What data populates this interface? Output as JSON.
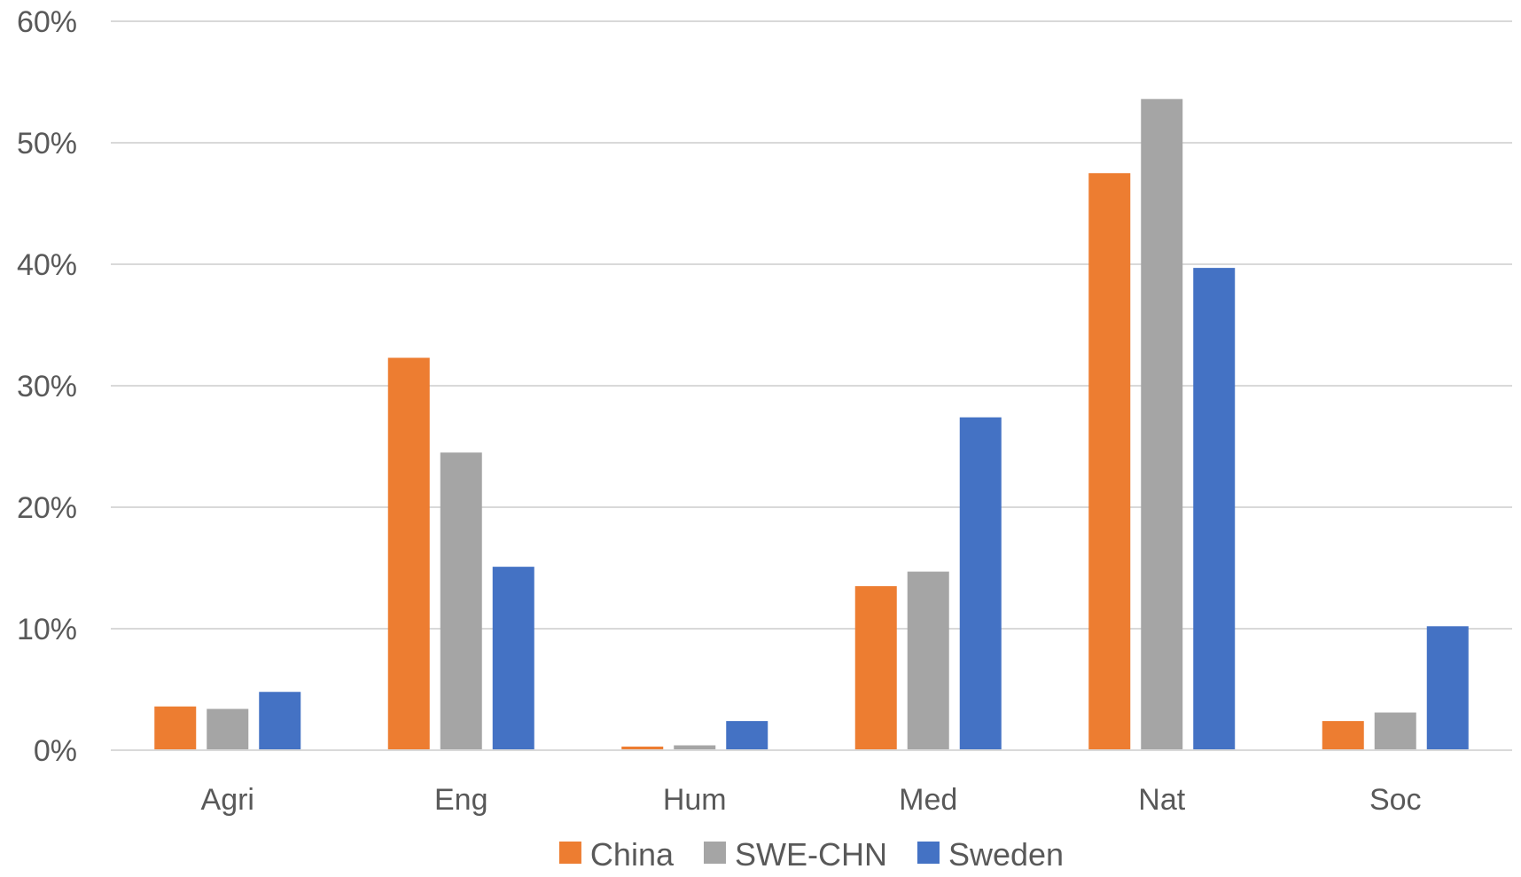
{
  "chart_data": {
    "type": "bar",
    "title": "",
    "xlabel": "",
    "ylabel": "",
    "categories": [
      "Agri",
      "Eng",
      "Hum",
      "Med",
      "Nat",
      "Soc"
    ],
    "series": [
      {
        "name": "China",
        "color": "#ed7d31",
        "values": [
          3.6,
          32.3,
          0.3,
          13.5,
          47.5,
          2.4
        ]
      },
      {
        "name": "SWE-CHN",
        "color": "#a5a5a5",
        "values": [
          3.4,
          24.5,
          0.4,
          14.7,
          53.6,
          3.1
        ]
      },
      {
        "name": "Sweden",
        "color": "#4472c4",
        "values": [
          4.8,
          15.1,
          2.4,
          27.4,
          39.7,
          10.2
        ]
      }
    ],
    "ylim": [
      0,
      60
    ],
    "yticks": [
      0,
      10,
      20,
      30,
      40,
      50,
      60
    ],
    "ytick_labels": [
      "0%",
      "10%",
      "20%",
      "30%",
      "40%",
      "50%",
      "60%"
    ],
    "grid": true,
    "legend_position": "bottom"
  }
}
